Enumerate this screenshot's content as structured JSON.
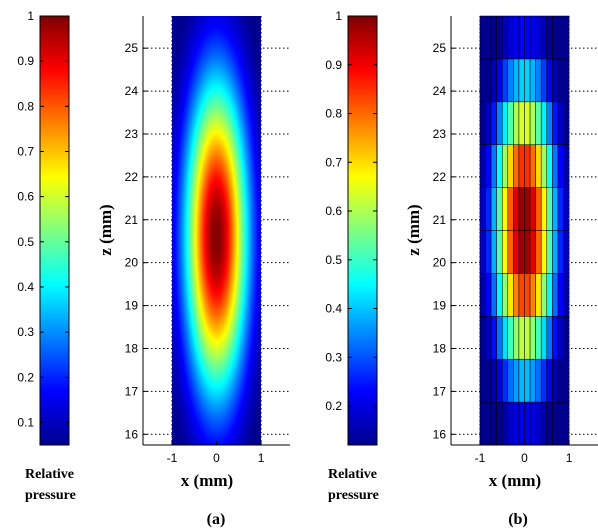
{
  "colormap": [
    "#00008f",
    "#0000ff",
    "#0080ff",
    "#00ffff",
    "#80ff80",
    "#ffff00",
    "#ff8000",
    "#ff0000",
    "#800000"
  ],
  "chart_data": [
    {
      "type": "heatmap",
      "panel_label": "(a)",
      "xlabel": "x (mm)",
      "ylabel": "z (mm)",
      "xlim": [
        -1.65,
        1.65
      ],
      "ylim": [
        15.75,
        25.75
      ],
      "xticks": [
        -1,
        0,
        1
      ],
      "yticks": [
        16,
        17,
        18,
        19,
        20,
        21,
        22,
        23,
        24,
        25
      ],
      "field_extent_x": [
        -1,
        1
      ],
      "rendering": "smooth",
      "peak": {
        "x": 0,
        "z": 20.6,
        "value": 1.0
      },
      "sigma_x_mm": 0.5,
      "sigma_z_mm": 2.6,
      "colorbar": {
        "label_line1": "Relative",
        "label_line2": "pressure",
        "min": 0.05,
        "max": 1,
        "ticks": [
          "1",
          "0.9",
          "0.8",
          "0.7",
          "0.6",
          "0.5",
          "0.4",
          "0.3",
          "0.2",
          "0.1"
        ]
      }
    },
    {
      "type": "heatmap",
      "panel_label": "(b)",
      "xlabel": "x (mm)",
      "ylabel": "z (mm)",
      "xlim": [
        -1.65,
        1.65
      ],
      "ylim": [
        15.75,
        25.75
      ],
      "xticks": [
        -1,
        0,
        1
      ],
      "yticks": [
        16,
        17,
        18,
        19,
        20,
        21,
        22,
        23,
        24,
        25
      ],
      "field_extent_x": [
        -1,
        1
      ],
      "rendering": "discrete",
      "grid_columns": 16,
      "row_boundaries_z": [
        16.75,
        17.75,
        18.75,
        19.75,
        20.75,
        21.75,
        22.75,
        23.75,
        24.75
      ],
      "peak": {
        "x": 0,
        "z": 20.8,
        "value": 1.0
      },
      "sigma_x_mm": 0.5,
      "sigma_z_mm": 2.6,
      "colorbar": {
        "label_line1": "Relative",
        "label_line2": "pressure",
        "min": 0.12,
        "max": 1,
        "ticks": [
          "1",
          "0.9",
          "0.8",
          "0.7",
          "0.6",
          "0.5",
          "0.4",
          "0.3",
          "0.2"
        ]
      }
    }
  ]
}
